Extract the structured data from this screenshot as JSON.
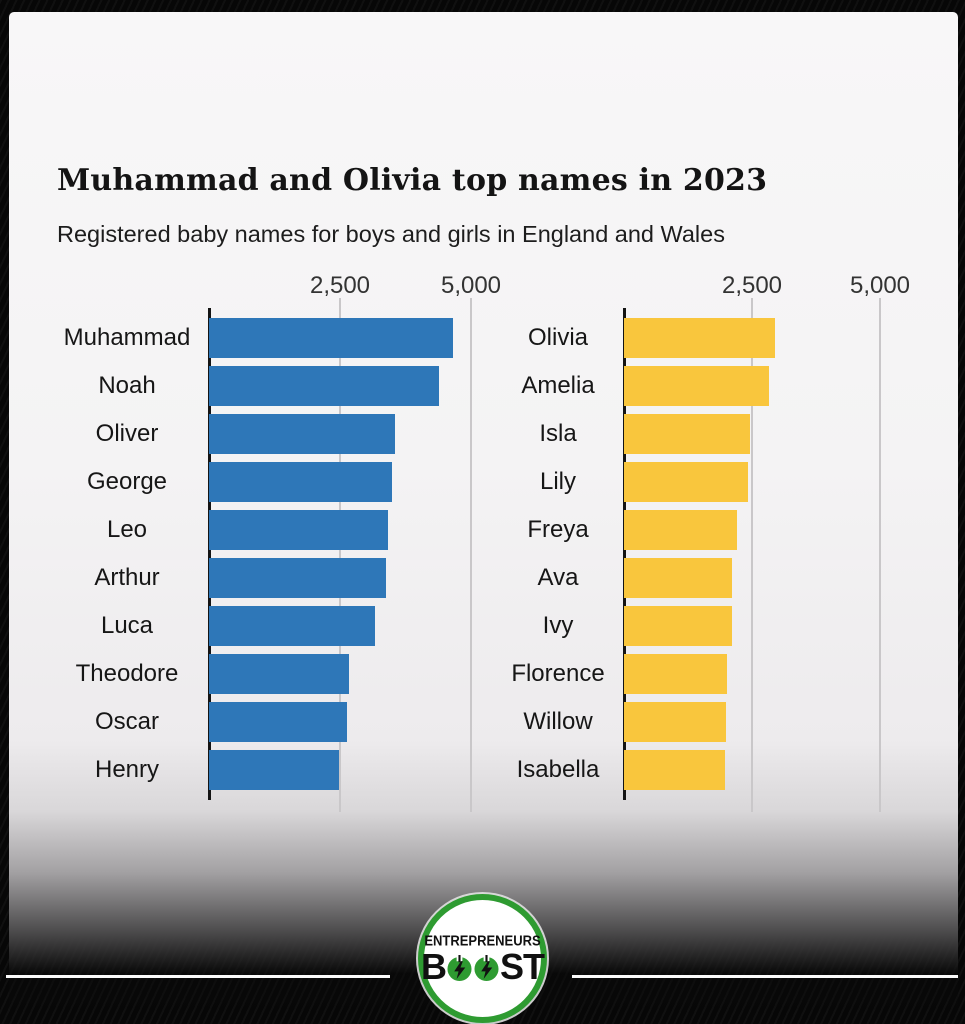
{
  "header": {
    "title": "Muhammad and Olivia top names in 2023",
    "subtitle": "Registered baby names for boys and girls in England and Wales"
  },
  "chart_data": {
    "type": "bar",
    "orientation": "horizontal",
    "title": "Muhammad and Olivia top names in 2023",
    "subtitle": "Registered baby names for boys and girls in England and Wales",
    "axis_ticks": [
      "2,500",
      "5,000"
    ],
    "axis_tick_values": [
      2500,
      5000
    ],
    "xlim": [
      0,
      5500
    ],
    "grid": true,
    "legend": "none",
    "series": [
      {
        "name": "boys",
        "color": "#2e77b8",
        "categories": [
          "Muhammad",
          "Noah",
          "Oliver",
          "George",
          "Leo",
          "Arthur",
          "Luca",
          "Theodore",
          "Oscar",
          "Henry"
        ],
        "values": [
          4661,
          4382,
          3556,
          3494,
          3416,
          3376,
          3162,
          2679,
          2634,
          2490
        ]
      },
      {
        "name": "girls",
        "color": "#f9c63d",
        "categories": [
          "Olivia",
          "Amelia",
          "Isla",
          "Lily",
          "Freya",
          "Ava",
          "Ivy",
          "Florence",
          "Willow",
          "Isabella"
        ],
        "values": [
          2952,
          2839,
          2462,
          2419,
          2198,
          2119,
          2110,
          2007,
          1997,
          1963
        ]
      }
    ]
  },
  "colors": {
    "bar_blue": "#2e77b8",
    "bar_yellow": "#f9c63d",
    "logo_green": "#2e9b31",
    "card_bg": "#f7f6f7",
    "background": "#070707"
  },
  "logo": {
    "top_text": "ENTREPRENEURS",
    "bottom_b": "B",
    "bottom_st": "ST"
  }
}
